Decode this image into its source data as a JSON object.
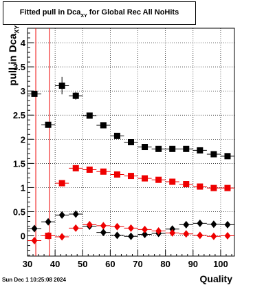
{
  "title": {
    "main": "Fitted pull in Dca",
    "subscript": "XY",
    "suffix": " for Global Rec All NoHits"
  },
  "footer": {
    "timestamp": "Sun Dec  1 10:25:08 2024"
  },
  "chart_data": {
    "type": "scatter",
    "title": "Fitted pull in Dca XY for Global Rec All NoHits",
    "xlabel": "Quality",
    "ylabel": "pull in Dca XY",
    "xlim": [
      30,
      105
    ],
    "ylim": [
      -0.42,
      4.3
    ],
    "x_ticks": [
      30,
      40,
      50,
      60,
      70,
      80,
      90,
      100
    ],
    "y_ticks": [
      0,
      0.5,
      1,
      1.5,
      2,
      2.5,
      3,
      3.5,
      4
    ],
    "grid": true,
    "x": [
      32.5,
      37.5,
      42.5,
      47.5,
      52.5,
      57.5,
      62.5,
      67.5,
      72.5,
      77.5,
      82.5,
      87.5,
      92.5,
      97.5,
      102.5
    ],
    "vertical_lines": [
      {
        "x": 33,
        "color": "#ee0000"
      },
      {
        "x": 38,
        "color": "#ee0000"
      }
    ],
    "series": [
      {
        "marker": "square",
        "color": "#000000",
        "values": [
          2.94,
          2.3,
          3.11,
          2.9,
          2.49,
          2.29,
          2.07,
          1.94,
          1.84,
          1.8,
          1.8,
          1.8,
          1.77,
          1.69,
          1.65
        ],
        "errors": [
          0.06,
          0.04,
          0.18,
          0.08,
          0.03,
          0.03,
          0.03,
          0.03,
          0.02,
          0.02,
          0.02,
          0.02,
          0.02,
          0.02,
          0.02
        ]
      },
      {
        "marker": "square",
        "color": "#ee0000",
        "values": [
          null,
          0.0,
          1.09,
          1.4,
          1.37,
          1.33,
          1.27,
          1.24,
          1.19,
          1.16,
          1.12,
          1.07,
          1.02,
          0.99,
          0.99
        ],
        "errors": [
          null,
          0.02,
          0.03,
          0.02,
          0.02,
          0.02,
          0.02,
          0.02,
          0.02,
          0.02,
          0.02,
          0.02,
          0.02,
          0.02,
          0.02
        ]
      },
      {
        "marker": "diamond",
        "color": "#000000",
        "values": [
          0.15,
          0.29,
          0.43,
          0.45,
          0.2,
          0.07,
          0.01,
          -0.01,
          0.03,
          0.05,
          0.14,
          0.23,
          0.26,
          0.24,
          0.23
        ],
        "errors": [
          0.03,
          0.04,
          0.07,
          0.04,
          0.03,
          0.02,
          0.02,
          0.02,
          0.02,
          0.02,
          0.02,
          0.02,
          0.02,
          0.02,
          0.02
        ]
      },
      {
        "marker": "diamond",
        "color": "#ee0000",
        "values": [
          -0.1,
          0.0,
          -0.02,
          0.16,
          0.23,
          0.21,
          0.19,
          0.16,
          0.13,
          0.1,
          0.06,
          0.04,
          0.01,
          -0.01,
          0.0
        ],
        "errors": [
          0.03,
          0.02,
          0.02,
          0.02,
          0.02,
          0.02,
          0.02,
          0.02,
          0.02,
          0.02,
          0.02,
          0.02,
          0.02,
          0.02,
          0.02
        ]
      }
    ]
  }
}
